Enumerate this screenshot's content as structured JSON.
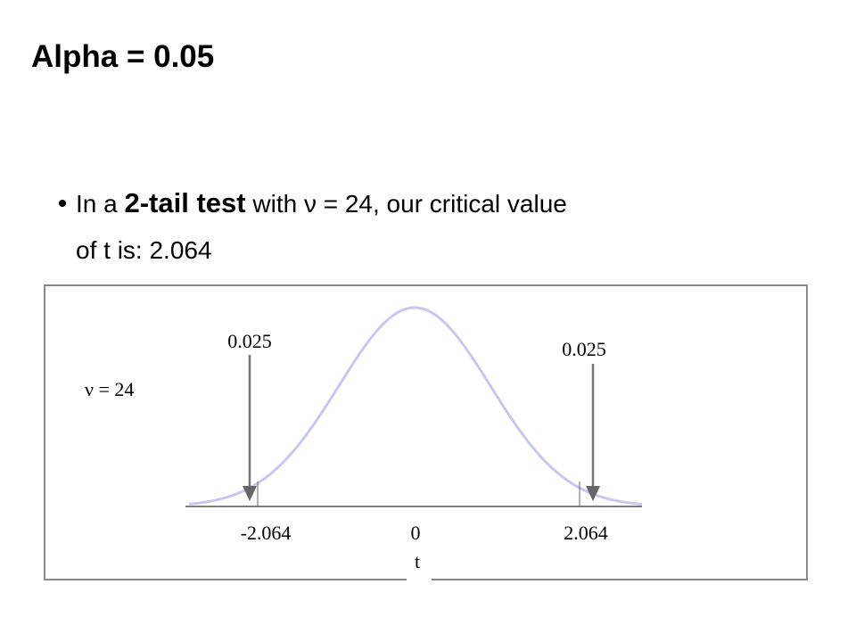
{
  "title": "Alpha = 0.05",
  "bullet": {
    "start": "In a ",
    "emphasis": "2-tail test",
    "end": " with ν = 24, our critical value",
    "line2": "of t is: 2.064"
  },
  "figure": {
    "df_label": "ν = 24",
    "left_area": "0.025",
    "right_area": "0.025",
    "left_critical": "-2.064",
    "center": "0",
    "right_critical": "2.064",
    "axis_label": "t"
  }
}
